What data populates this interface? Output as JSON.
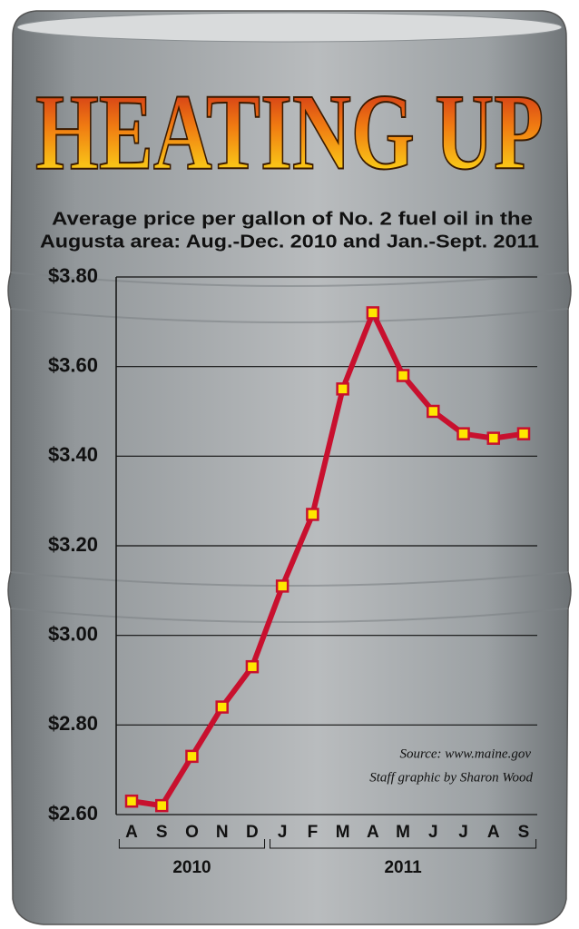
{
  "chart_data": {
    "type": "line",
    "title": "HEATING UP",
    "subtitle": [
      "Average price per gallon of No. 2 fuel oil in the",
      "Augusta area: Aug.-Dec. 2010 and Jan.-Sept. 2011"
    ],
    "categories": [
      "A",
      "S",
      "O",
      "N",
      "D",
      "J",
      "F",
      "M",
      "A",
      "M",
      "J",
      "J",
      "A",
      "S"
    ],
    "year_groups": [
      {
        "label": "2010",
        "count": 5
      },
      {
        "label": "2011",
        "count": 9
      }
    ],
    "series": [
      {
        "name": "Price per gallon",
        "color": "#c8102e",
        "marker_color": "#ffe600",
        "values": [
          2.63,
          2.62,
          2.73,
          2.84,
          2.93,
          3.11,
          3.27,
          3.55,
          3.72,
          3.58,
          3.5,
          3.45,
          3.44,
          3.45
        ]
      }
    ],
    "ylim": [
      2.6,
      3.8
    ],
    "yticks": [
      {
        "value": 2.6,
        "label": "$2.60"
      },
      {
        "value": 2.8,
        "label": "$2.80"
      },
      {
        "value": 3.0,
        "label": "$3.00"
      },
      {
        "value": 3.2,
        "label": "$3.20"
      },
      {
        "value": 3.4,
        "label": "$3.40"
      },
      {
        "value": 3.6,
        "label": "$3.60"
      },
      {
        "value": 3.8,
        "label": "$3.80"
      }
    ],
    "grid": true,
    "annotations": [
      "Source: www.maine.gov",
      "Staff graphic by Sharon Wood"
    ]
  }
}
